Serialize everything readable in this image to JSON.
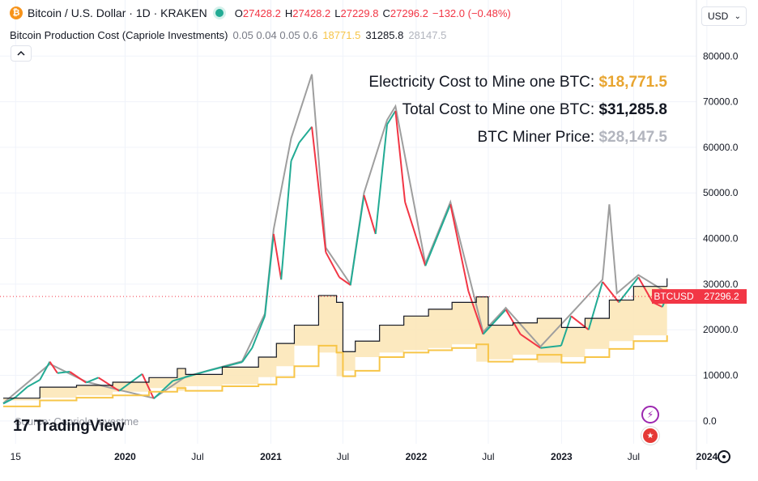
{
  "header": {
    "symbol_title": "Bitcoin / U.S. Dollar · 1D · KRAKEN",
    "ohlc": [
      {
        "key": "O",
        "value": "27428.2"
      },
      {
        "key": "H",
        "value": "27428.2"
      },
      {
        "key": "L",
        "value": "27229.8"
      },
      {
        "key": "C",
        "value": "27296.2"
      }
    ],
    "change": "−132.0 (−0.48%)",
    "currency": "USD"
  },
  "indicator": {
    "name": "Bitcoin Production Cost (Capriole Investments)",
    "params": "0.05 0.04 0.05 0.6",
    "electricity_value": "18771.5",
    "total_value": "31285.8",
    "miner_value": "28147.5"
  },
  "legend": {
    "electricity_label": "Electricity Cost to Mine one BTC:",
    "electricity_value": "$18,771.5",
    "total_label": "Total Cost to Mine one BTC:",
    "total_value": "$31,285.8",
    "miner_label": "BTC Miner Price:",
    "miner_value": "$28,147.5"
  },
  "branding": {
    "logo_mark": "17",
    "logo_text": "TradingView",
    "source_text": "Source: Capriole Investme"
  },
  "colors": {
    "up": "#22ab94",
    "down": "#f23645",
    "electricity": "#f7c548",
    "total": "#131722",
    "miner": "#9e9e9e",
    "fill_light": "#fbe5b4",
    "fill_dark": "#a08a3c"
  },
  "icons": {
    "bolt": "lightning-icon",
    "flag": "flag-icon",
    "settings": "gear-icon"
  },
  "chart_data": {
    "type": "line",
    "title": "Bitcoin / U.S. Dollar · 1D · KRAKEN",
    "xlabel": "",
    "ylabel": "",
    "ylim": [
      -5000,
      82000
    ],
    "x_start": "2019-03-01",
    "x_end": "2024-02-15",
    "y_ticks": [
      "80000.0",
      "70000.0",
      "60000.0",
      "50000.0",
      "40000.0",
      "30000.0",
      "20000.0",
      "10000.0",
      "0.0"
    ],
    "y_tick_values": [
      80000,
      70000,
      60000,
      50000,
      40000,
      30000,
      20000,
      10000,
      0
    ],
    "x_ticks": [
      {
        "label": "15",
        "date": "2019-04-01",
        "bold": false
      },
      {
        "label": "2020",
        "date": "2020-01-01",
        "bold": true
      },
      {
        "label": "Jul",
        "date": "2020-07-01",
        "bold": false
      },
      {
        "label": "2021",
        "date": "2021-01-01",
        "bold": true
      },
      {
        "label": "Jul",
        "date": "2021-07-01",
        "bold": false
      },
      {
        "label": "2022",
        "date": "2022-01-01",
        "bold": true
      },
      {
        "label": "Jul",
        "date": "2022-07-01",
        "bold": false
      },
      {
        "label": "2023",
        "date": "2023-01-01",
        "bold": true
      },
      {
        "label": "Jul",
        "date": "2023-07-01",
        "bold": false
      },
      {
        "label": "2024",
        "date": "2024-01-01",
        "bold": true
      }
    ],
    "price_line": {
      "label": "BTCUSD",
      "value": "27296.2",
      "numeric": 27296.2
    },
    "series": [
      {
        "name": "BTCUSD",
        "kind": "price",
        "points": [
          [
            "2019-03-01",
            3800
          ],
          [
            "2019-04-01",
            5200
          ],
          [
            "2019-05-01",
            7500
          ],
          [
            "2019-06-01",
            9000
          ],
          [
            "2019-06-26",
            13000
          ],
          [
            "2019-07-15",
            10500
          ],
          [
            "2019-08-15",
            10800
          ],
          [
            "2019-09-25",
            8400
          ],
          [
            "2019-10-26",
            9500
          ],
          [
            "2019-12-17",
            6600
          ],
          [
            "2020-02-13",
            10300
          ],
          [
            "2020-03-13",
            4900
          ],
          [
            "2020-04-30",
            8800
          ],
          [
            "2020-06-01",
            9600
          ],
          [
            "2020-07-27",
            11000
          ],
          [
            "2020-09-01",
            11800
          ],
          [
            "2020-10-21",
            12900
          ],
          [
            "2020-11-15",
            16000
          ],
          [
            "2020-12-17",
            23000
          ],
          [
            "2021-01-08",
            41000
          ],
          [
            "2021-01-27",
            31000
          ],
          [
            "2021-02-21",
            57000
          ],
          [
            "2021-03-13",
            61000
          ],
          [
            "2021-04-14",
            64500
          ],
          [
            "2021-05-19",
            37000
          ],
          [
            "2021-06-22",
            31500
          ],
          [
            "2021-07-20",
            29800
          ],
          [
            "2021-08-23",
            49500
          ],
          [
            "2021-09-21",
            41000
          ],
          [
            "2021-10-20",
            65000
          ],
          [
            "2021-11-10",
            68000
          ],
          [
            "2021-12-04",
            48000
          ],
          [
            "2022-01-24",
            34000
          ],
          [
            "2022-03-28",
            47500
          ],
          [
            "2022-05-12",
            28500
          ],
          [
            "2022-06-18",
            19000
          ],
          [
            "2022-08-14",
            24400
          ],
          [
            "2022-09-20",
            19000
          ],
          [
            "2022-11-09",
            16000
          ],
          [
            "2022-12-31",
            16500
          ],
          [
            "2023-01-25",
            23000
          ],
          [
            "2023-03-10",
            20000
          ],
          [
            "2023-04-14",
            30500
          ],
          [
            "2023-05-25",
            26000
          ],
          [
            "2023-07-13",
            31500
          ],
          [
            "2023-08-18",
            26000
          ],
          [
            "2023-09-11",
            25000
          ],
          [
            "2023-09-23",
            27296
          ]
        ]
      },
      {
        "name": "Electricity Cost",
        "kind": "electricity",
        "points": [
          [
            "2019-03-01",
            3200
          ],
          [
            "2019-06-01",
            4500
          ],
          [
            "2019-09-01",
            5100
          ],
          [
            "2019-12-01",
            5600
          ],
          [
            "2020-03-01",
            6400
          ],
          [
            "2020-05-11",
            7200
          ],
          [
            "2020-06-01",
            6600
          ],
          [
            "2020-09-01",
            7600
          ],
          [
            "2020-12-01",
            8000
          ],
          [
            "2021-01-15",
            9600
          ],
          [
            "2021-03-01",
            12000
          ],
          [
            "2021-05-01",
            16500
          ],
          [
            "2021-06-15",
            15000
          ],
          [
            "2021-07-01",
            9800
          ],
          [
            "2021-08-01",
            11000
          ],
          [
            "2021-10-01",
            14000
          ],
          [
            "2021-12-01",
            15000
          ],
          [
            "2022-02-01",
            15500
          ],
          [
            "2022-04-01",
            16000
          ],
          [
            "2022-06-01",
            16800
          ],
          [
            "2022-07-01",
            13000
          ],
          [
            "2022-09-01",
            13500
          ],
          [
            "2022-11-01",
            14500
          ],
          [
            "2023-01-01",
            12800
          ],
          [
            "2023-03-01",
            14000
          ],
          [
            "2023-05-01",
            15800
          ],
          [
            "2023-07-01",
            17500
          ],
          [
            "2023-09-23",
            18771.5
          ]
        ]
      },
      {
        "name": "Total Cost",
        "kind": "total",
        "points": [
          [
            "2019-03-01",
            5000
          ],
          [
            "2019-06-01",
            7400
          ],
          [
            "2019-09-01",
            7800
          ],
          [
            "2019-12-01",
            8500
          ],
          [
            "2020-03-01",
            9500
          ],
          [
            "2020-05-11",
            11500
          ],
          [
            "2020-06-01",
            10200
          ],
          [
            "2020-09-01",
            11800
          ],
          [
            "2020-12-01",
            14000
          ],
          [
            "2021-01-15",
            17000
          ],
          [
            "2021-03-01",
            21000
          ],
          [
            "2021-05-01",
            27500
          ],
          [
            "2021-06-15",
            26000
          ],
          [
            "2021-07-01",
            15200
          ],
          [
            "2021-08-01",
            17500
          ],
          [
            "2021-10-01",
            21000
          ],
          [
            "2021-12-01",
            23000
          ],
          [
            "2022-02-01",
            24500
          ],
          [
            "2022-04-01",
            26000
          ],
          [
            "2022-06-01",
            27200
          ],
          [
            "2022-07-01",
            21000
          ],
          [
            "2022-09-01",
            21500
          ],
          [
            "2022-11-01",
            22500
          ],
          [
            "2023-01-01",
            20500
          ],
          [
            "2023-03-01",
            22500
          ],
          [
            "2023-05-01",
            26500
          ],
          [
            "2023-07-01",
            29500
          ],
          [
            "2023-09-23",
            31285.8
          ]
        ]
      },
      {
        "name": "BTC Miner Price",
        "kind": "miner",
        "points": [
          [
            "2019-03-01",
            3900
          ],
          [
            "2019-06-26",
            12500
          ],
          [
            "2019-09-25",
            8600
          ],
          [
            "2019-12-17",
            6800
          ],
          [
            "2020-03-13",
            5000
          ],
          [
            "2020-06-01",
            9700
          ],
          [
            "2020-10-21",
            13100
          ],
          [
            "2020-12-17",
            23500
          ],
          [
            "2021-01-08",
            42000
          ],
          [
            "2021-02-21",
            62000
          ],
          [
            "2021-04-14",
            76000
          ],
          [
            "2021-05-19",
            38000
          ],
          [
            "2021-07-20",
            30000
          ],
          [
            "2021-08-23",
            50000
          ],
          [
            "2021-10-20",
            66000
          ],
          [
            "2021-11-10",
            69000
          ],
          [
            "2022-01-24",
            34500
          ],
          [
            "2022-03-28",
            48000
          ],
          [
            "2022-06-18",
            19500
          ],
          [
            "2022-08-14",
            24800
          ],
          [
            "2022-11-09",
            16300
          ],
          [
            "2023-01-25",
            23500
          ],
          [
            "2023-04-14",
            31000
          ],
          [
            "2023-05-01",
            47500
          ],
          [
            "2023-05-20",
            28000
          ],
          [
            "2023-07-13",
            32000
          ],
          [
            "2023-09-23",
            28147.5
          ]
        ]
      }
    ]
  }
}
